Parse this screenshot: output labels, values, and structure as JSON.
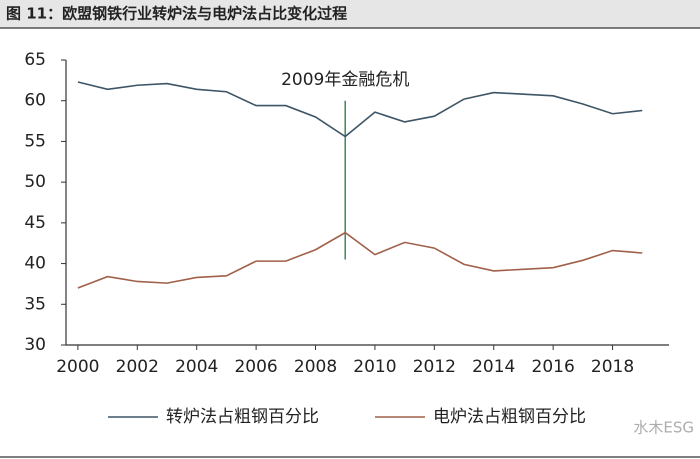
{
  "chart_data": {
    "type": "line",
    "title": "图 11：欧盟钢铁行业转炉法与电炉法占比变化过程",
    "x": [
      2000,
      2001,
      2002,
      2003,
      2004,
      2005,
      2006,
      2007,
      2008,
      2009,
      2010,
      2011,
      2012,
      2013,
      2014,
      2015,
      2016,
      2017,
      2018,
      2019
    ],
    "series": [
      {
        "name": "转炉法占粗钢百分比",
        "color": "#3d5566",
        "values": [
          62.3,
          61.4,
          61.9,
          62.1,
          61.4,
          61.1,
          59.4,
          59.4,
          58.0,
          55.6,
          58.6,
          57.4,
          58.1,
          60.2,
          61.0,
          60.8,
          60.6,
          59.6,
          58.4,
          58.8
        ]
      },
      {
        "name": "电炉法占粗钢百分比",
        "color": "#a0604a",
        "values": [
          37.0,
          38.4,
          37.8,
          37.6,
          38.3,
          38.5,
          40.3,
          40.3,
          41.7,
          43.8,
          41.1,
          42.6,
          41.9,
          39.9,
          39.1,
          39.3,
          39.5,
          40.4,
          41.6,
          41.3
        ]
      }
    ],
    "xlim": [
      1999.6,
      2019.9
    ],
    "xticks": [
      2000,
      2002,
      2004,
      2006,
      2008,
      2010,
      2012,
      2014,
      2016,
      2018
    ],
    "ylim": [
      30,
      65
    ],
    "yticks": [
      30,
      35,
      40,
      45,
      50,
      55,
      60,
      65
    ],
    "annotation": {
      "text": "2009年金融危机",
      "x": 2009,
      "y_range": [
        40.5,
        60
      ],
      "color": "#3a8a5a"
    },
    "legend": "bottom",
    "watermark": "水木ESG"
  }
}
